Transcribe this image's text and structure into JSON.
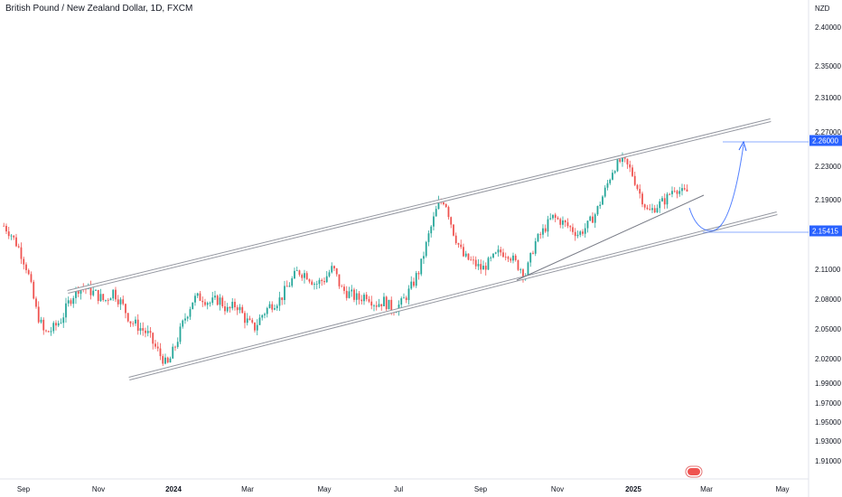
{
  "header": {
    "title": "British Pound / New Zealand Dollar, 1D, FXCM"
  },
  "price_axis": {
    "currency": "NZD"
  },
  "chart_data": {
    "type": "candlestick",
    "title": "British Pound / New Zealand Dollar, 1D, FXCM",
    "y_ticks": [
      "2.40000",
      "2.35000",
      "2.31000",
      "2.27000",
      "2.23000",
      "2.19000",
      "2.11000",
      "2.08000",
      "2.05000",
      "2.02000",
      "1.99000",
      "1.97000",
      "1.95000",
      "1.93000",
      "1.91000"
    ],
    "x_ticks": [
      {
        "label": "Sep",
        "bold": false
      },
      {
        "label": "Nov",
        "bold": false
      },
      {
        "label": "2024",
        "bold": true
      },
      {
        "label": "Mar",
        "bold": false
      },
      {
        "label": "May",
        "bold": false
      },
      {
        "label": "Jul",
        "bold": false
      },
      {
        "label": "Sep",
        "bold": false
      },
      {
        "label": "Nov",
        "bold": false
      },
      {
        "label": "2025",
        "bold": true
      },
      {
        "label": "Mar",
        "bold": false
      },
      {
        "label": "May",
        "bold": false
      }
    ],
    "price_markers": [
      {
        "label": "2.26000",
        "value": 2.26,
        "color": "#2962ff"
      },
      {
        "label": "2.15415",
        "value": 2.15415,
        "color": "#2962ff"
      }
    ],
    "price_path": [
      [
        "2023-08-16",
        2.16
      ],
      [
        "2023-08-22",
        2.15
      ],
      [
        "2023-08-28",
        2.135
      ],
      [
        "2023-09-04",
        2.11
      ],
      [
        "2023-09-11",
        2.07
      ],
      [
        "2023-09-18",
        2.045
      ],
      [
        "2023-09-25",
        2.05
      ],
      [
        "2023-10-02",
        2.06
      ],
      [
        "2023-10-09",
        2.08
      ],
      [
        "2023-10-16",
        2.092
      ],
      [
        "2023-10-23",
        2.09
      ],
      [
        "2023-10-30",
        2.085
      ],
      [
        "2023-11-06",
        2.078
      ],
      [
        "2023-11-13",
        2.088
      ],
      [
        "2023-11-20",
        2.075
      ],
      [
        "2023-11-27",
        2.058
      ],
      [
        "2023-12-04",
        2.052
      ],
      [
        "2023-12-11",
        2.045
      ],
      [
        "2023-12-18",
        2.03
      ],
      [
        "2023-12-27",
        2.012
      ],
      [
        "2024-01-03",
        2.035
      ],
      [
        "2024-01-10",
        2.06
      ],
      [
        "2024-01-17",
        2.08
      ],
      [
        "2024-01-24",
        2.082
      ],
      [
        "2024-01-31",
        2.076
      ],
      [
        "2024-02-07",
        2.08
      ],
      [
        "2024-02-14",
        2.068
      ],
      [
        "2024-02-21",
        2.075
      ],
      [
        "2024-02-28",
        2.06
      ],
      [
        "2024-03-06",
        2.05
      ],
      [
        "2024-03-13",
        2.065
      ],
      [
        "2024-03-20",
        2.075
      ],
      [
        "2024-03-27",
        2.08
      ],
      [
        "2024-04-03",
        2.095
      ],
      [
        "2024-04-10",
        2.108
      ],
      [
        "2024-04-17",
        2.105
      ],
      [
        "2024-04-24",
        2.095
      ],
      [
        "2024-05-01",
        2.1
      ],
      [
        "2024-05-08",
        2.112
      ],
      [
        "2024-05-15",
        2.09
      ],
      [
        "2024-05-22",
        2.085
      ],
      [
        "2024-05-29",
        2.08
      ],
      [
        "2024-06-05",
        2.085
      ],
      [
        "2024-06-12",
        2.075
      ],
      [
        "2024-06-19",
        2.078
      ],
      [
        "2024-06-26",
        2.07
      ],
      [
        "2024-07-03",
        2.075
      ],
      [
        "2024-07-10",
        2.09
      ],
      [
        "2024-07-17",
        2.11
      ],
      [
        "2024-07-24",
        2.15
      ],
      [
        "2024-07-31",
        2.185
      ],
      [
        "2024-08-05",
        2.19
      ],
      [
        "2024-08-12",
        2.15
      ],
      [
        "2024-08-19",
        2.125
      ],
      [
        "2024-08-26",
        2.118
      ],
      [
        "2024-09-02",
        2.11
      ],
      [
        "2024-09-09",
        2.12
      ],
      [
        "2024-09-16",
        2.13
      ],
      [
        "2024-09-23",
        2.128
      ],
      [
        "2024-09-30",
        2.115
      ],
      [
        "2024-10-07",
        2.105
      ],
      [
        "2024-10-14",
        2.14
      ],
      [
        "2024-10-21",
        2.155
      ],
      [
        "2024-10-28",
        2.17
      ],
      [
        "2024-11-04",
        2.165
      ],
      [
        "2024-11-11",
        2.158
      ],
      [
        "2024-11-18",
        2.15
      ],
      [
        "2024-11-25",
        2.16
      ],
      [
        "2024-12-02",
        2.175
      ],
      [
        "2024-12-09",
        2.2
      ],
      [
        "2024-12-16",
        2.228
      ],
      [
        "2024-12-23",
        2.238
      ],
      [
        "2024-12-30",
        2.225
      ],
      [
        "2025-01-06",
        2.198
      ],
      [
        "2025-01-13",
        2.175
      ],
      [
        "2025-01-20",
        2.183
      ],
      [
        "2025-01-27",
        2.19
      ],
      [
        "2025-02-03",
        2.205
      ],
      [
        "2025-02-10",
        2.198
      ],
      [
        "2025-02-14",
        2.2
      ]
    ]
  }
}
